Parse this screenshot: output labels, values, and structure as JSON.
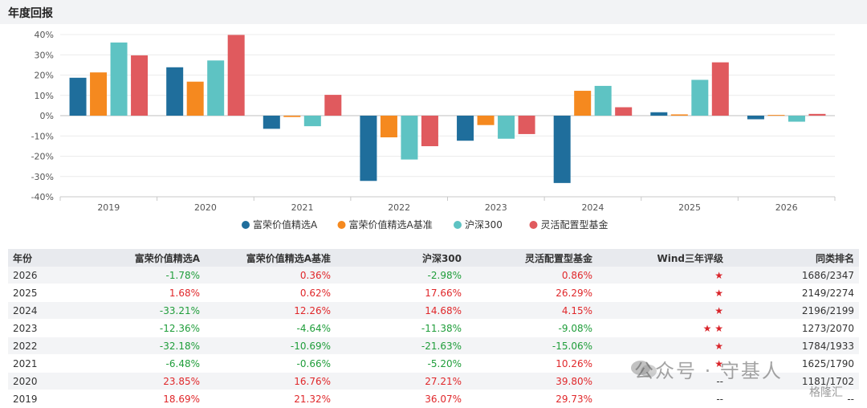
{
  "page": {
    "title": "年度回报"
  },
  "chart_data": {
    "type": "bar",
    "categories": [
      "2019",
      "2020",
      "2021",
      "2022",
      "2023",
      "2024",
      "2025",
      "2026"
    ],
    "ylim": [
      -40,
      40
    ],
    "yticks": [
      40,
      30,
      20,
      10,
      0,
      -10,
      -20,
      -30,
      -40
    ],
    "ytick_labels": [
      "40%",
      "30%",
      "20%",
      "10%",
      "0%",
      "-10%",
      "-20%",
      "-30%",
      "-40%"
    ],
    "legend_position": "bottom",
    "series": [
      {
        "name": "富荣价值精选A",
        "color": "#1f6e9c",
        "values": [
          18.69,
          23.85,
          -6.48,
          -32.18,
          -12.36,
          -33.21,
          1.68,
          -1.78
        ]
      },
      {
        "name": "富荣价值精选A基准",
        "color": "#f5891f",
        "values": [
          21.32,
          16.76,
          -0.66,
          -10.69,
          -4.64,
          12.26,
          0.62,
          0.36
        ]
      },
      {
        "name": "沪深300",
        "color": "#5ec3c3",
        "values": [
          36.07,
          27.21,
          -5.2,
          -21.63,
          -11.38,
          14.68,
          17.66,
          -2.98
        ]
      },
      {
        "name": "灵活配置型基金",
        "color": "#e05a5e",
        "values": [
          29.73,
          39.8,
          10.26,
          -15.06,
          -9.08,
          4.15,
          26.29,
          0.86
        ]
      }
    ]
  },
  "table": {
    "headers": [
      "年份",
      "富荣价值精选A",
      "富荣价值精选A基准",
      "沪深300",
      "灵活配置型基金",
      "Wind三年评级",
      "同类排名"
    ],
    "rows": [
      {
        "year": "2026",
        "a": "-1.78%",
        "b": "0.36%",
        "c": "-2.98%",
        "d": "0.86%",
        "rating": "★",
        "rank": "1686/2347"
      },
      {
        "year": "2025",
        "a": "1.68%",
        "b": "0.62%",
        "c": "17.66%",
        "d": "26.29%",
        "rating": "★",
        "rank": "2149/2274"
      },
      {
        "year": "2024",
        "a": "-33.21%",
        "b": "12.26%",
        "c": "14.68%",
        "d": "4.15%",
        "rating": "★",
        "rank": "2196/2199"
      },
      {
        "year": "2023",
        "a": "-12.36%",
        "b": "-4.64%",
        "c": "-11.38%",
        "d": "-9.08%",
        "rating": "★ ★",
        "rank": "1273/2070"
      },
      {
        "year": "2022",
        "a": "-32.18%",
        "b": "-10.69%",
        "c": "-21.63%",
        "d": "-15.06%",
        "rating": "★",
        "rank": "1784/1933"
      },
      {
        "year": "2021",
        "a": "-6.48%",
        "b": "-0.66%",
        "c": "-5.20%",
        "d": "10.26%",
        "rating": "★",
        "rank": "1625/1790"
      },
      {
        "year": "2020",
        "a": "23.85%",
        "b": "16.76%",
        "c": "27.21%",
        "d": "39.80%",
        "rating": "--",
        "rank": "1181/1702"
      },
      {
        "year": "2019",
        "a": "18.69%",
        "b": "21.32%",
        "c": "36.07%",
        "d": "29.73%",
        "rating": "--",
        "rank": "--"
      }
    ]
  },
  "watermark": {
    "text": "公众号 · 守基人",
    "corner": "格隆汇"
  }
}
